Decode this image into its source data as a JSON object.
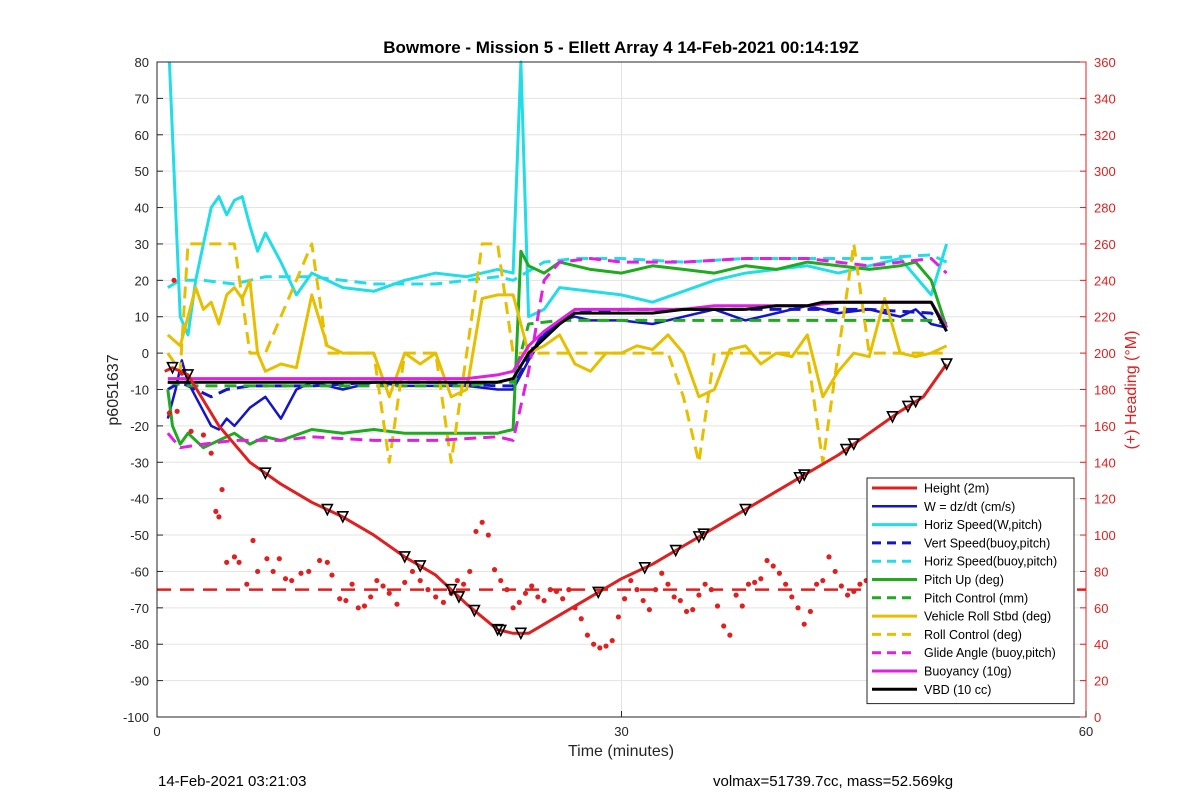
{
  "chart_data": {
    "type": "line",
    "title": "Bowmore - Mission 5 - Ellett Array 4 14-Feb-2021 00:14:19Z",
    "xlabel": "Time (minutes)",
    "ylabel_left": "p6051637",
    "ylabel_right": "(+) Heading (°M)",
    "xlim": [
      0,
      60
    ],
    "ylim_left": [
      -100,
      80
    ],
    "ylim_right": [
      0,
      360
    ],
    "x_ticks": [
      "0",
      "30",
      "60"
    ],
    "y_ticks_left": [
      "80",
      "70",
      "60",
      "50",
      "40",
      "30",
      "20",
      "10",
      "0",
      "-10",
      "-20",
      "-30",
      "-40",
      "-50",
      "-60",
      "-70",
      "-80",
      "-90",
      "-100"
    ],
    "y_ticks_right": [
      "360",
      "340",
      "320",
      "300",
      "280",
      "260",
      "240",
      "220",
      "200",
      "180",
      "160",
      "140",
      "120",
      "100",
      "80",
      "60",
      "40",
      "20",
      "0"
    ],
    "grid": true,
    "legend_position": "bottom-right",
    "colors": {
      "right_axis": "#e02020"
    },
    "series": [
      {
        "name": "Height (2m)",
        "color": "#e02020",
        "style": "solid",
        "width": 3,
        "x": [
          0.5,
          1,
          2,
          4,
          6,
          8,
          10,
          12,
          14,
          16,
          18,
          20,
          22,
          23,
          24,
          26,
          28,
          30,
          32,
          34,
          36,
          38,
          40,
          42,
          44,
          46,
          48,
          49.5,
          51
        ],
        "y": [
          -5,
          -4,
          -6,
          -20,
          -30,
          -36,
          -41,
          -45,
          -50,
          -56,
          -61,
          -69,
          -76,
          -77,
          -77,
          -72,
          -67,
          -62,
          -58,
          -53,
          -48,
          -43,
          -38,
          -33,
          -28,
          -22,
          -16,
          -12,
          -3
        ]
      },
      {
        "name": "W = dz/dt (cm/s)",
        "color": "#1414c8",
        "style": "solid",
        "width": 2.5,
        "x": [
          0.7,
          1.2,
          1.6,
          2,
          2.5,
          3,
          3.5,
          4,
          4.5,
          5,
          6,
          7,
          8,
          9,
          10,
          12,
          14,
          16,
          18,
          20,
          22,
          23,
          24,
          25,
          26,
          27,
          28,
          30,
          32,
          34,
          36,
          38,
          40,
          42,
          44,
          46,
          48,
          49,
          50,
          51
        ],
        "y": [
          -18,
          -10,
          -2,
          -8,
          -12,
          -16,
          -20,
          -21,
          -18,
          -20,
          -15,
          -12,
          -18,
          -10,
          -8,
          -10,
          -8,
          -9,
          -9,
          -9,
          -10,
          -10,
          -2,
          5,
          9,
          10,
          9,
          9,
          8,
          10,
          12,
          9,
          11,
          13,
          11,
          12,
          10,
          12,
          8,
          7
        ]
      },
      {
        "name": "Horiz Speed(W,pitch)",
        "color": "#22dde8",
        "style": "solid",
        "width": 3,
        "x": [
          0.8,
          1.5,
          2,
          2.5,
          3,
          3.5,
          4,
          4.5,
          5,
          5.5,
          6,
          6.5,
          7,
          8,
          9,
          10,
          12,
          14,
          16,
          18,
          20,
          22,
          23,
          23.5,
          24,
          25,
          26,
          28,
          30,
          32,
          34,
          36,
          38,
          40,
          42,
          44,
          46,
          48,
          50,
          51
        ],
        "y": [
          80,
          10,
          5,
          20,
          30,
          40,
          43,
          38,
          42,
          43,
          35,
          28,
          33,
          25,
          16,
          22,
          18,
          17,
          20,
          22,
          21,
          23,
          22,
          80,
          10,
          12,
          18,
          17,
          16,
          14,
          17,
          20,
          22,
          23,
          24,
          22,
          24,
          26,
          16,
          30
        ]
      },
      {
        "name": "Vert Speed(buoy,pitch)",
        "color": "#1414c8",
        "style": "dashed",
        "width": 3,
        "x": [
          0.7,
          1.5,
          2.5,
          3.5,
          4.5,
          6,
          8,
          10,
          14,
          18,
          22,
          23,
          25,
          27,
          30,
          34,
          38,
          42,
          46,
          50,
          51
        ],
        "y": [
          -10,
          -8,
          -10,
          -12,
          -10,
          -9,
          -9,
          -9,
          -8,
          -8,
          -9,
          -9,
          6,
          11,
          12,
          12,
          12,
          12,
          12,
          11,
          8
        ]
      },
      {
        "name": "Horiz Speed(buoy,pitch)",
        "color": "#22dde8",
        "style": "dashed",
        "width": 3,
        "x": [
          0.7,
          1.5,
          3,
          5,
          7,
          10,
          14,
          18,
          22,
          23,
          25,
          27,
          30,
          34,
          38,
          42,
          46,
          50,
          51
        ],
        "y": [
          18,
          20,
          20,
          19,
          21,
          21,
          19,
          19,
          21,
          20,
          25,
          26,
          26,
          25,
          26,
          26,
          26,
          27,
          25
        ]
      },
      {
        "name": "Pitch Up (deg)",
        "color": "#1faa1f",
        "style": "solid",
        "width": 3,
        "x": [
          0.7,
          1,
          1.5,
          2,
          3,
          4,
          5,
          6,
          7,
          8,
          10,
          12,
          14,
          16,
          18,
          20,
          22,
          23,
          23.5,
          24,
          25,
          26,
          28,
          30,
          32,
          34,
          36,
          38,
          40,
          42,
          44,
          46,
          48,
          49,
          50,
          51
        ],
        "y": [
          -10,
          -20,
          -25,
          -22,
          -26,
          -24,
          -22,
          -25,
          -23,
          -24,
          -21,
          -22,
          -21,
          -22,
          -22,
          -22,
          -22,
          -21,
          28,
          24,
          22,
          25,
          23,
          22,
          24,
          23,
          22,
          24,
          23,
          25,
          24,
          23,
          24,
          25,
          20,
          7
        ]
      },
      {
        "name": "Pitch Control (mm)",
        "color": "#1faa1f",
        "style": "dashed",
        "width": 3,
        "x": [
          0.7,
          2,
          5,
          10,
          15,
          20,
          22,
          23,
          24,
          26,
          30,
          35,
          40,
          45,
          50,
          51
        ],
        "y": [
          -8,
          -9,
          -9,
          -9,
          -9,
          -9,
          -8,
          -8,
          8,
          9,
          9,
          9,
          9,
          9,
          9,
          8
        ]
      },
      {
        "name": "Vehicle Roll Stbd (deg)",
        "color": "#e6c000",
        "style": "solid",
        "width": 3,
        "x": [
          0.7,
          1.5,
          2,
          2.5,
          3,
          3.5,
          4,
          4.5,
          5,
          5.5,
          6,
          6.5,
          7,
          8,
          9,
          10,
          11,
          12,
          13,
          14,
          15,
          16,
          17,
          18,
          19,
          20,
          21,
          22,
          23,
          24,
          25,
          26,
          27,
          28,
          29,
          30,
          31,
          32,
          33,
          34,
          35,
          36,
          37,
          38,
          39,
          40,
          41,
          42,
          43,
          44,
          45,
          46,
          47,
          48,
          49,
          50,
          51
        ],
        "y": [
          5,
          2,
          10,
          18,
          12,
          14,
          8,
          16,
          18,
          15,
          20,
          0,
          -5,
          -3,
          -4,
          16,
          2,
          0,
          0,
          0,
          -12,
          0,
          -3,
          0,
          -12,
          -10,
          15,
          16,
          16,
          0,
          2,
          5,
          -3,
          -5,
          0,
          0,
          2,
          1,
          5,
          0,
          -12,
          -10,
          1,
          2,
          -3,
          0,
          -1,
          5,
          -12,
          -5,
          0,
          -1,
          15,
          0,
          -1,
          0,
          2
        ]
      },
      {
        "name": "Roll Control (deg)",
        "color": "#e6c000",
        "style": "dashed",
        "width": 3,
        "x": [
          0.7,
          1.5,
          2,
          3,
          5,
          6,
          7,
          10,
          11,
          14,
          15,
          16,
          18,
          19,
          20,
          21,
          22,
          23,
          24,
          26,
          28,
          30,
          32,
          33,
          34,
          35,
          36,
          37,
          38,
          39,
          40,
          42,
          43,
          44,
          45,
          46,
          47,
          48,
          50,
          51
        ],
        "y": [
          0,
          -5,
          30,
          30,
          30,
          0,
          0,
          30,
          0,
          0,
          -30,
          0,
          0,
          -30,
          0,
          30,
          30,
          0,
          0,
          0,
          0,
          0,
          0,
          0,
          -12,
          -30,
          0,
          0,
          0,
          0,
          0,
          0,
          -30,
          0,
          30,
          0,
          0,
          0,
          0,
          0
        ]
      },
      {
        "name": "Glide Angle (buoy,pitch)",
        "color": "#e020e0",
        "style": "dashed",
        "width": 3,
        "x": [
          0.7,
          1.5,
          3,
          5,
          8,
          10,
          14,
          18,
          22,
          23,
          24,
          25,
          26,
          28,
          30,
          34,
          38,
          42,
          46,
          50,
          51
        ],
        "y": [
          -22,
          -26,
          -25,
          -24,
          -24,
          -23,
          -24,
          -24,
          -23,
          -24,
          -5,
          20,
          25,
          26,
          25,
          25,
          26,
          26,
          24,
          26,
          22
        ]
      },
      {
        "name": "Buoyancy (10g)",
        "color": "#e020e0",
        "style": "solid",
        "width": 3,
        "x": [
          0.7,
          2,
          5,
          10,
          15,
          20,
          22,
          23,
          24,
          25,
          26,
          27,
          28,
          30,
          32,
          34,
          36,
          38,
          40,
          42,
          44,
          46,
          48,
          50,
          51
        ],
        "y": [
          -7,
          -7,
          -7,
          -7,
          -7,
          -7,
          -6,
          -5,
          2,
          6,
          9,
          12,
          12,
          12,
          12,
          12,
          13,
          13,
          13,
          13,
          14,
          14,
          14,
          14,
          7
        ]
      },
      {
        "name": "VBD (10 cc)",
        "color": "#000000",
        "style": "solid",
        "width": 3,
        "x": [
          0.7,
          2,
          5,
          10,
          15,
          20,
          22,
          23,
          24,
          25,
          26,
          27,
          28,
          30,
          32,
          34,
          36,
          38,
          40,
          42,
          43,
          44,
          46,
          48,
          50,
          51
        ],
        "y": [
          -8,
          -8,
          -8,
          -8,
          -8,
          -8,
          -8,
          -7,
          0,
          4,
          8,
          11,
          11,
          11,
          11,
          12,
          12,
          12,
          13,
          13,
          14,
          14,
          14,
          14,
          14,
          6
        ]
      }
    ],
    "reference_line": {
      "color": "#e02020",
      "style": "dashed",
      "y_right": 70
    },
    "heading_points_right": {
      "color": "#e02020",
      "x": [
        0.8,
        1.1,
        1.3,
        1.6,
        2.2,
        3,
        3.5,
        3.8,
        4,
        4.2,
        4.5,
        5,
        5.3,
        5.8,
        6.2,
        6.5,
        7.1,
        7.5,
        7.9,
        8.3,
        8.7,
        9.3,
        9.8,
        10.5,
        11,
        11.3,
        11.8,
        12.2,
        12.6,
        13,
        13.4,
        13.8,
        14.2,
        14.6,
        15,
        15.5,
        16,
        16.5,
        17,
        17.5,
        18,
        18.5,
        19,
        19.4,
        19.8,
        20.2,
        20.6,
        21,
        21.4,
        21.8,
        22.2,
        22.6,
        23,
        23.4,
        23.8,
        24.2,
        24.6,
        25,
        25.4,
        25.8,
        26.2,
        26.6,
        27,
        27.4,
        27.8,
        28.2,
        28.6,
        29,
        29.4,
        29.8,
        30.2,
        30.6,
        31,
        31.4,
        31.8,
        32.2,
        32.6,
        33,
        33.4,
        33.8,
        34.2,
        34.6,
        35,
        35.4,
        35.8,
        36.2,
        36.6,
        37,
        37.4,
        37.8,
        38.2,
        38.6,
        39,
        39.4,
        39.8,
        40.2,
        40.6,
        41,
        41.4,
        41.8,
        42.2,
        42.6,
        43,
        43.4,
        43.8,
        44.2,
        44.6,
        45,
        45.4,
        45.8,
        46.2,
        46.6,
        47,
        47.4,
        47.8,
        48.2,
        48.6,
        49,
        49.4,
        49.8,
        50.2,
        50.6
      ],
      "y": [
        167,
        240,
        168,
        189,
        157,
        155,
        145,
        113,
        110,
        125,
        85,
        88,
        85,
        73,
        97,
        80,
        87,
        80,
        87,
        76,
        75,
        79,
        80,
        86,
        85,
        78,
        65,
        64,
        73,
        60,
        61,
        66,
        75,
        72,
        68,
        62,
        74,
        80,
        75,
        70,
        66,
        63,
        68,
        75,
        73,
        80,
        102,
        107,
        100,
        81,
        75,
        70,
        60,
        63,
        68,
        72,
        66,
        64,
        70,
        69,
        65,
        70,
        60,
        54,
        45,
        40,
        38,
        39,
        42,
        55,
        65,
        75,
        70,
        64,
        59,
        70,
        79,
        73,
        66,
        64,
        58,
        59,
        67,
        73,
        70,
        61,
        50,
        45,
        67,
        61,
        73,
        74,
        76,
        86,
        83,
        79,
        73,
        66,
        60,
        51,
        58,
        73,
        75,
        88,
        80,
        72,
        67,
        69,
        73,
        75,
        62,
        57,
        53,
        49,
        65,
        73,
        59,
        52,
        45,
        53,
        61,
        65
      ]
    },
    "markers_on_height": {
      "shape": "triangle",
      "color": "#000000",
      "x": [
        1,
        2,
        7,
        11,
        12,
        16,
        17,
        19,
        19.5,
        20.5,
        22,
        22.2,
        23.5,
        28.5,
        31.5,
        33.5,
        35,
        35.3,
        38,
        41.5,
        41.8,
        44.5,
        45,
        47.5,
        48.5,
        49,
        51
      ]
    }
  },
  "footer": {
    "left": "14-Feb-2021 03:21:03",
    "right": "volmax=51739.7cc, mass=52.569kg"
  }
}
